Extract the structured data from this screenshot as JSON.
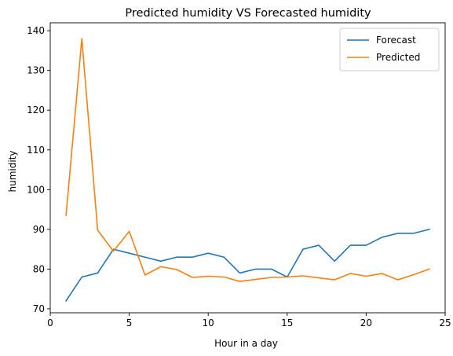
{
  "chart_data": {
    "type": "line",
    "title": "Predicted humidity VS Forecasted humidity",
    "xlabel": "Hour in a day",
    "ylabel": "humidity",
    "xlim": [
      0,
      25
    ],
    "ylim": [
      69,
      142
    ],
    "xticks": [
      0,
      5,
      10,
      15,
      20,
      25
    ],
    "yticks": [
      70,
      80,
      90,
      100,
      110,
      120,
      130,
      140
    ],
    "grid": false,
    "legend_position": "top-right",
    "x": [
      1,
      2,
      3,
      4,
      5,
      6,
      7,
      8,
      9,
      10,
      11,
      12,
      13,
      14,
      15,
      16,
      17,
      18,
      19,
      20,
      21,
      22,
      23,
      24
    ],
    "series": [
      {
        "name": "Forecast",
        "color": "#1f77b4",
        "values": [
          72,
          78,
          79,
          85,
          84,
          83,
          82,
          83,
          83,
          84,
          83,
          79,
          80,
          80,
          78,
          85,
          86,
          82,
          86,
          86,
          88,
          89,
          89,
          90
        ]
      },
      {
        "name": "Predicted",
        "color": "#ff7f0e",
        "values": [
          93.5,
          138,
          89.8,
          84.5,
          89.5,
          78.5,
          80.6,
          79.9,
          77.9,
          78.2,
          78.0,
          76.9,
          77.4,
          77.9,
          78.0,
          78.3,
          77.8,
          77.3,
          78.9,
          78.2,
          78.9,
          77.3,
          78.6,
          80.0
        ]
      }
    ]
  }
}
